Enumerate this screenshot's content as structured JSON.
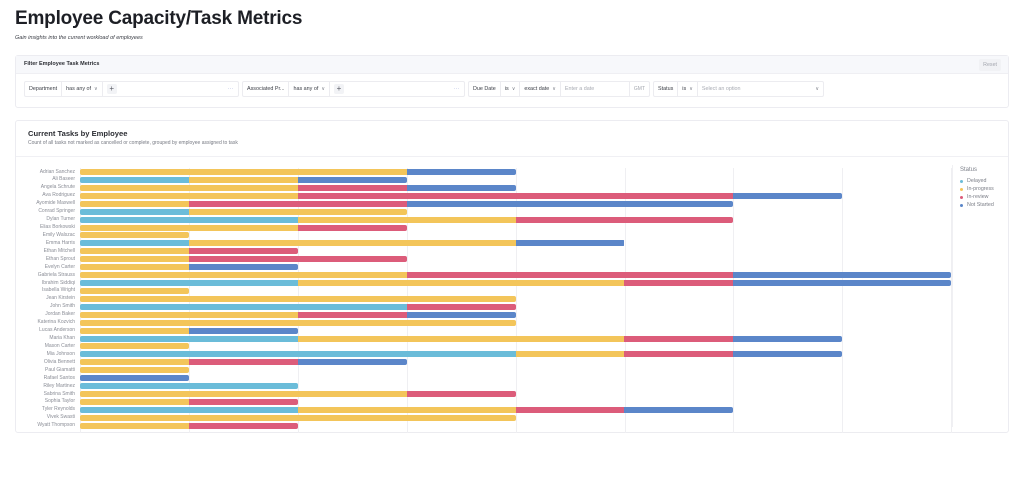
{
  "page": {
    "title": "Employee Capacity/Task Metrics",
    "subtitle": "Gain insights into the current workload of employees"
  },
  "filter_panel": {
    "title": "Filter Employee Task Metrics",
    "reset_label": "Reset",
    "filters": [
      {
        "field": "Department",
        "operator": "has any of",
        "value": "",
        "more": "···"
      },
      {
        "field": "Associated Pr...",
        "operator": "has any of",
        "value": "",
        "more": "···"
      },
      {
        "field": "Due Date",
        "operator": "is",
        "mode": "exact date",
        "placeholder": "Enter a date",
        "timezone": "GMT"
      },
      {
        "field": "Status",
        "operator": "is",
        "placeholder": "Select an option"
      }
    ]
  },
  "chart_card": {
    "title": "Current Tasks by Employee",
    "subtitle": "Count of all tasks not marked as cancelled or complete, grouped by employee assigned to task"
  },
  "colors": {
    "Delayed": "#6bbcd9",
    "In-progress": "#f3c55a",
    "In-review": "#dc5c7a",
    "Not Started": "#5b86c9"
  },
  "chart_data": {
    "type": "bar",
    "orientation": "horizontal",
    "stacked": true,
    "title": "Current Tasks by Employee",
    "subtitle": "Count of all tasks not marked as cancelled or complete, grouped by employee assigned to task",
    "xlabel": "",
    "ylabel": "",
    "xlim": [
      0,
      8
    ],
    "grid": true,
    "legend": {
      "title": "Status",
      "position": "right",
      "entries": [
        "Delayed",
        "In-progress",
        "In-review",
        "Not Started"
      ]
    },
    "categories": [
      "Adrian Sanchez",
      "Ali Baseer",
      "Angela Schrute",
      "Ava Rodriguez",
      "Ayomide Maxwell",
      "Conrad Springer",
      "Dylan Turner",
      "Elias Borkowski",
      "Emily Walszac",
      "Emma Harris",
      "Ethan Mitchell",
      "Ethan Sprout",
      "Evelyn Carter",
      "Gabriela Strauss",
      "Ibrahim Siddiqi",
      "Isabella Wright",
      "Jean Kirstein",
      "John Smith",
      "Jordan Baker",
      "Katerina Kozvich",
      "Lucas Anderson",
      "Maria Khan",
      "Mason Carter",
      "Mia Johnson",
      "Olivia Bennett",
      "Paul Giamatti",
      "Rafael Santos",
      "Riley Martinez",
      "Sabrina Smith",
      "Sophia Taylor",
      "Tyler Reynolds",
      "Vivek Swasti",
      "Wyatt Thompson"
    ],
    "series": [
      {
        "name": "Delayed",
        "values": [
          0,
          1,
          0,
          0,
          0,
          1,
          2,
          0,
          0,
          1,
          0,
          0,
          0,
          0,
          2,
          0,
          0,
          3,
          0,
          0,
          0,
          2,
          0,
          4,
          0,
          0,
          0,
          2,
          0,
          0,
          2,
          0,
          0
        ]
      },
      {
        "name": "In-progress",
        "values": [
          3,
          1,
          2,
          2,
          1,
          2,
          2,
          2,
          1,
          3,
          1,
          1,
          1,
          3,
          3,
          1,
          4,
          0,
          2,
          4,
          1,
          3,
          1,
          1,
          1,
          1,
          0,
          0,
          3,
          1,
          2,
          4,
          1
        ]
      },
      {
        "name": "In-review",
        "values": [
          0,
          0,
          1,
          4,
          2,
          0,
          2,
          1,
          0,
          0,
          1,
          2,
          0,
          3,
          1,
          0,
          0,
          1,
          1,
          0,
          0,
          1,
          0,
          1,
          1,
          0,
          0,
          0,
          1,
          1,
          1,
          0,
          1
        ]
      },
      {
        "name": "Not Started",
        "values": [
          1,
          1,
          1,
          1,
          3,
          0,
          0,
          0,
          0,
          1,
          0,
          0,
          1,
          2,
          2,
          0,
          0,
          0,
          1,
          0,
          1,
          1,
          0,
          1,
          1,
          0,
          1,
          0,
          0,
          0,
          1,
          0,
          0
        ]
      }
    ]
  }
}
